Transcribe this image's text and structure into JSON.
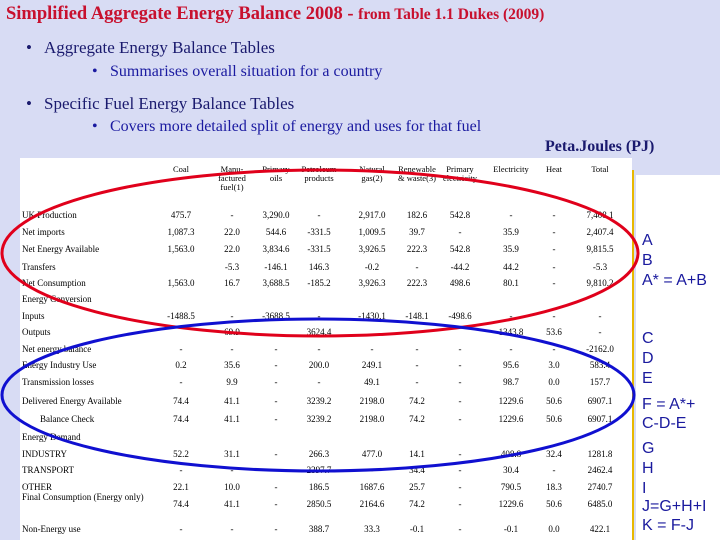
{
  "title": {
    "main": "Simplified Aggregate Energy Balance 2008 - ",
    "sub": "from Table 1.1 Dukes (2009)"
  },
  "bullets": [
    {
      "text": "Aggregate Energy Balance Tables",
      "level": 1
    },
    {
      "text": "Summarises overall situation for a country",
      "level": 2
    },
    {
      "text": "Specific Fuel Energy Balance Tables",
      "level": 1
    },
    {
      "text": "Covers more detailed split of energy and uses for that fuel",
      "level": 2
    }
  ],
  "unit_label": "Peta.Joules (PJ)",
  "table": {
    "columns": [
      "Coal",
      "Manu-factured fuel(1)",
      "Primary oils",
      "Petroleum products",
      "Natural gas(2)",
      "Renewable & waste(3)",
      "Primary electricity",
      "Electricity",
      "Heat",
      "Total"
    ],
    "rows": [
      {
        "label": "UK Production",
        "values": [
          "475.7",
          "-",
          "3,290.0",
          "-",
          "2,917.0",
          "182.6",
          "542.8",
          "-",
          "-",
          "7,408.1"
        ]
      },
      {
        "label": "Net imports",
        "values": [
          "1,087.3",
          "22.0",
          "544.6",
          "-331.5",
          "1,009.5",
          "39.7",
          "-",
          "35.9",
          "-",
          "2,407.4"
        ]
      },
      {
        "label": "Net Energy Available",
        "values": [
          "1,563.0",
          "22.0",
          "3,834.6",
          "-331.5",
          "3,926.5",
          "222.3",
          "542.8",
          "35.9",
          "-",
          "9,815.5"
        ]
      },
      {
        "label": "Transfers",
        "values": [
          "",
          "-5.3",
          "-146.1",
          "146.3",
          "-0.2",
          "-",
          "-44.2",
          "44.2",
          "-",
          "-5.3"
        ]
      },
      {
        "label": "Net Consumption",
        "values": [
          "1,563.0",
          "16.7",
          "3,688.5",
          "-185.2",
          "3,926.3",
          "222.3",
          "498.6",
          "80.1",
          "-",
          "9,810.2"
        ]
      },
      {
        "label": "Energy Conversion",
        "values": [
          "",
          "",
          "",
          "",
          "",
          "",
          "",
          "",
          "",
          ""
        ]
      },
      {
        "label": "Inputs",
        "values": [
          "-1488.5",
          "-",
          "-3688.5",
          "-",
          "-1430.1",
          "-148.1",
          "-498.6",
          "-",
          "-",
          "-"
        ]
      },
      {
        "label": "Outputs",
        "values": [
          "",
          "69.9",
          "",
          "3624.4",
          "",
          "",
          "",
          "1343.8",
          "53.6",
          "-"
        ]
      },
      {
        "label": "Net energy balance",
        "values": [
          "-",
          "-",
          "-",
          "-",
          "-",
          "-",
          "-",
          "-",
          "-",
          "-2162.0"
        ]
      },
      {
        "label": "Energy Industry Use",
        "values": [
          "0.2",
          "35.6",
          "-",
          "200.0",
          "249.1",
          "-",
          "-",
          "95.6",
          "3.0",
          "583.4"
        ]
      },
      {
        "label": "Transmission losses",
        "values": [
          "-",
          "9.9",
          "-",
          "-",
          "49.1",
          "-",
          "-",
          "98.7",
          "0.0",
          "157.7"
        ]
      },
      {
        "label": "Delivered Energy Available",
        "values": [
          "74.4",
          "41.1",
          "-",
          "3239.2",
          "2198.0",
          "74.2",
          "-",
          "1229.6",
          "50.6",
          "6907.1"
        ]
      },
      {
        "label": "Balance Check",
        "values": [
          "74.4",
          "41.1",
          "-",
          "3239.2",
          "2198.0",
          "74.2",
          "-",
          "1229.6",
          "50.6",
          "6907.1"
        ]
      },
      {
        "label": "Energy Demand",
        "values": [
          "",
          "",
          "",
          "",
          "",
          "",
          "",
          "",
          "",
          ""
        ]
      },
      {
        "label": "INDUSTRY",
        "values": [
          "52.2",
          "31.1",
          "-",
          "266.3",
          "477.0",
          "14.1",
          "-",
          "408.8",
          "32.4",
          "1281.8"
        ]
      },
      {
        "label": "TRANSPORT",
        "values": [
          "-",
          "-",
          "-",
          "2397.7",
          "-",
          "34.4",
          "-",
          "30.4",
          "-",
          "2462.4"
        ]
      },
      {
        "label": "OTHER",
        "values": [
          "22.1",
          "10.0",
          "-",
          "186.5",
          "1687.6",
          "25.7",
          "-",
          "790.5",
          "18.3",
          "2740.7"
        ]
      },
      {
        "label": "Final Consumption (Energy only)",
        "values": [
          "74.4",
          "41.1",
          "-",
          "2850.5",
          "2164.6",
          "74.2",
          "-",
          "1229.6",
          "50.6",
          "6485.0"
        ]
      },
      {
        "label": "Non-Energy use",
        "values": [
          "-",
          "-",
          "-",
          "388.7",
          "33.3",
          "-0.1",
          "-",
          "-0.1",
          "0.0",
          "422.1"
        ]
      }
    ]
  },
  "side_notes": {
    "group1": [
      "A",
      "B",
      "A* = A+B"
    ],
    "group2": [
      "C",
      "D",
      "E"
    ],
    "formula1": [
      "F = A*+",
      "C-D-E"
    ],
    "group3": [
      "G",
      "H",
      "I"
    ],
    "formula2": [
      "J=G+H+I",
      "K = F-J"
    ]
  },
  "colors": {
    "title": "#c8102e",
    "bullet": "#1a1a6e",
    "ellipse_red": "#e0001b",
    "ellipse_blue": "#1010d0",
    "side_text": "#1a1a9e"
  }
}
